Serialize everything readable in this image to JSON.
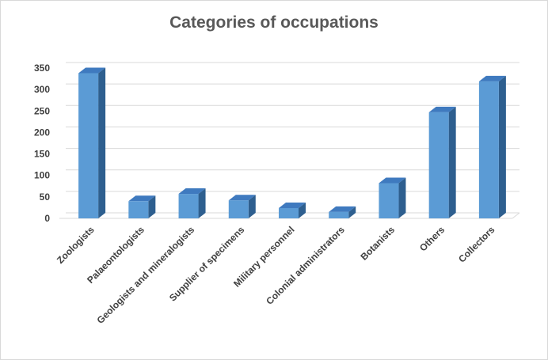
{
  "chart_data": {
    "type": "bar",
    "title": "Categories of occupations",
    "xlabel": "",
    "ylabel": "",
    "categories": [
      "Zoologists",
      "Palaeontologists",
      "Geologists and mineralogists",
      "Supplier of specimens",
      "Military personnel",
      "Colonial administrators",
      "Botanists",
      "Others",
      "Collectors"
    ],
    "values": [
      338,
      40,
      57,
      42,
      24,
      15,
      82,
      247,
      319
    ],
    "ylim": [
      0,
      350
    ],
    "yticks": [
      "0",
      "50",
      "100",
      "150",
      "200",
      "250",
      "300",
      "350"
    ],
    "grid": true,
    "legend": "none",
    "style": "3d-column",
    "colors": {
      "bar_front": "#5B9BD5",
      "bar_side": "#2E5F8F",
      "bar_top": "#3F7ABF",
      "grid": "#d9d9d9",
      "text": "#404040",
      "title": "#595959"
    }
  }
}
